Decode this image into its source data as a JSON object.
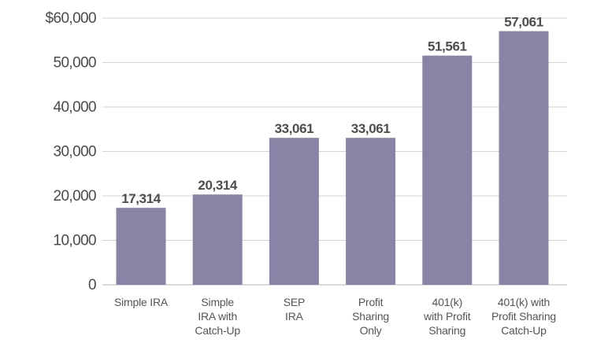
{
  "chart_data": {
    "type": "bar",
    "categories": [
      [
        "Simple IRA"
      ],
      [
        "Simple",
        "IRA with",
        "Catch-Up"
      ],
      [
        "SEP",
        "IRA"
      ],
      [
        "Profit",
        "Sharing",
        "Only"
      ],
      [
        "401(k)",
        "with Profit",
        "Sharing"
      ],
      [
        "401(k) with",
        "Profit Sharing",
        "Catch-Up"
      ]
    ],
    "values": [
      17314,
      20314,
      33061,
      33061,
      51561,
      57061
    ],
    "value_labels": [
      "17,314",
      "20,314",
      "33,061",
      "33,061",
      "51,561",
      "57,061"
    ],
    "yticks": [
      0,
      10000,
      20000,
      30000,
      40000,
      50000,
      60000
    ],
    "ytick_labels": [
      "0",
      "10,000",
      "20,000",
      "30,000",
      "40,000",
      "50,000",
      "$60,000"
    ],
    "ylim": [
      0,
      60000
    ],
    "bar_color": "#8a83a5",
    "title": "",
    "xlabel": "",
    "ylabel": "",
    "grid": true
  }
}
